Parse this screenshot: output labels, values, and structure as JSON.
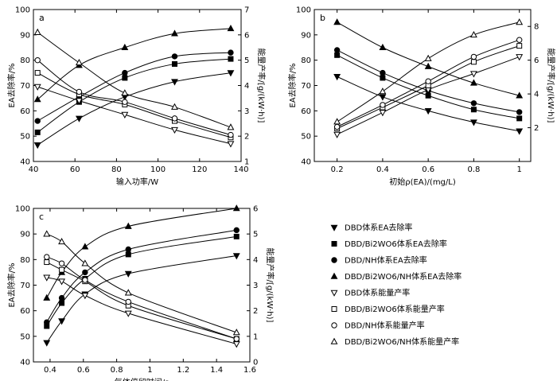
{
  "chart_data": [
    {
      "type": "line",
      "panel_label": "a",
      "xlabel": "输入功率/W",
      "ylabel": "EA去除率/%",
      "y2label": "能量产率/[g/(kW·h)]",
      "xlim": [
        40,
        140
      ],
      "ylim": [
        40,
        100
      ],
      "y2lim": [
        1,
        7
      ],
      "xticks": [
        40,
        60,
        80,
        100,
        120,
        140
      ],
      "yticks": [
        40,
        50,
        60,
        70,
        80,
        90,
        100
      ],
      "y2ticks": [
        1,
        2,
        3,
        4,
        5,
        6,
        7
      ],
      "grid": false,
      "series": [
        {
          "name": "DBD体系EA去除率",
          "marker": "triangle-down",
          "filled": true,
          "axis": "left",
          "x": [
            42,
            62,
            84,
            108,
            135
          ],
          "y": [
            46.5,
            57,
            65.5,
            71.5,
            75
          ]
        },
        {
          "name": "DBD/Bi2WO6体系EA去除率",
          "marker": "square",
          "filled": true,
          "axis": "left",
          "x": [
            42,
            62,
            84,
            108,
            135
          ],
          "y": [
            51.5,
            63.5,
            73,
            78.5,
            80.5
          ]
        },
        {
          "name": "DBD/NH体系EA去除率",
          "marker": "circle",
          "filled": true,
          "axis": "left",
          "x": [
            42,
            62,
            84,
            108,
            135
          ],
          "y": [
            56,
            65.5,
            75,
            81.5,
            83
          ]
        },
        {
          "name": "DBD/Bi2WO6/NH体系EA去除率",
          "marker": "triangle-up",
          "filled": true,
          "axis": "left",
          "x": [
            42,
            62,
            84,
            108,
            135
          ],
          "y": [
            64.5,
            78,
            85,
            90.5,
            92.5
          ]
        },
        {
          "name": "DBD体系能量产率",
          "marker": "triangle-down",
          "filled": false,
          "axis": "right",
          "x": [
            42,
            62,
            84,
            108,
            135
          ],
          "y": [
            3.95,
            3.4,
            2.85,
            2.25,
            1.7
          ]
        },
        {
          "name": "DBD/Bi2WO6体系能量产率",
          "marker": "square",
          "filled": false,
          "axis": "right",
          "x": [
            42,
            62,
            84,
            108,
            135
          ],
          "y": [
            4.5,
            3.65,
            3.25,
            2.6,
            1.95
          ]
        },
        {
          "name": "DBD/NH体系能量产率",
          "marker": "circle",
          "filled": false,
          "axis": "right",
          "x": [
            42,
            62,
            84,
            108,
            135
          ],
          "y": [
            5,
            3.75,
            3.35,
            2.7,
            2.05
          ]
        },
        {
          "name": "DBD/Bi2WO6/NH体系能量产率",
          "marker": "triangle-up",
          "filled": false,
          "axis": "right",
          "x": [
            42,
            62,
            84,
            108,
            135
          ],
          "y": [
            6.1,
            4.9,
            3.7,
            3.15,
            2.35
          ]
        }
      ]
    },
    {
      "type": "line",
      "panel_label": "b",
      "xlabel": "初始ρ(EA)/(mg/L)",
      "ylabel": "EA去除率/%",
      "y2label": "能量产率/[g/(kW·h)]",
      "xlim": [
        0.1,
        1.05
      ],
      "ylim": [
        40,
        100
      ],
      "y2lim": [
        0,
        9
      ],
      "xticks": [
        0.2,
        0.4,
        0.6,
        0.8,
        1.0
      ],
      "yticks": [
        40,
        50,
        60,
        70,
        80,
        90,
        100
      ],
      "y2ticks": [
        2,
        4,
        6,
        8
      ],
      "grid": false,
      "series": [
        {
          "name": "DBD体系EA去除率",
          "marker": "triangle-down",
          "filled": true,
          "axis": "left",
          "x": [
            0.2,
            0.4,
            0.6,
            0.8,
            1.0
          ],
          "y": [
            73.5,
            65.5,
            60,
            55.5,
            52
          ]
        },
        {
          "name": "DBD/Bi2WO6体系EA去除率",
          "marker": "square",
          "filled": true,
          "axis": "left",
          "x": [
            0.2,
            0.4,
            0.6,
            0.8,
            1.0
          ],
          "y": [
            82,
            73,
            66,
            60.5,
            57
          ]
        },
        {
          "name": "DBD/NH体系EA去除率",
          "marker": "circle",
          "filled": true,
          "axis": "left",
          "x": [
            0.2,
            0.4,
            0.6,
            0.8,
            1.0
          ],
          "y": [
            84,
            75,
            68,
            63,
            59.5
          ]
        },
        {
          "name": "DBD/Bi2WO6/NH体系EA去除率",
          "marker": "triangle-up",
          "filled": true,
          "axis": "left",
          "x": [
            0.2,
            0.4,
            0.6,
            0.8,
            1.0
          ],
          "y": [
            95,
            85,
            77.5,
            71,
            66
          ]
        },
        {
          "name": "DBD体系能量产率",
          "marker": "triangle-down",
          "filled": false,
          "axis": "right",
          "x": [
            0.2,
            0.4,
            0.6,
            0.8,
            1.0
          ],
          "y": [
            1.6,
            2.9,
            4.25,
            5.2,
            6.2
          ]
        },
        {
          "name": "DBD/Bi2WO6体系能量产率",
          "marker": "square",
          "filled": false,
          "axis": "right",
          "x": [
            0.2,
            0.4,
            0.6,
            0.8,
            1.0
          ],
          "y": [
            1.95,
            3.2,
            4.5,
            5.9,
            6.85
          ]
        },
        {
          "name": "DBD/NH体系能量产率",
          "marker": "circle",
          "filled": false,
          "axis": "right",
          "x": [
            0.2,
            0.4,
            0.6,
            0.8,
            1.0
          ],
          "y": [
            2.05,
            3.35,
            4.75,
            6.2,
            7.2
          ]
        },
        {
          "name": "DBD/Bi2WO6/NH体系能量产率",
          "marker": "triangle-up",
          "filled": false,
          "axis": "right",
          "x": [
            0.2,
            0.4,
            0.6,
            0.8,
            1.0
          ],
          "y": [
            2.35,
            4.15,
            6.1,
            7.5,
            8.25
          ]
        }
      ]
    },
    {
      "type": "line",
      "panel_label": "c",
      "xlabel": "气体停留时间/s",
      "ylabel": "EA去除率/%",
      "y2label": "能量产率/[g/(kW·h)]",
      "xlim": [
        0.3,
        1.6
      ],
      "ylim": [
        40,
        100
      ],
      "y2lim": [
        0,
        6
      ],
      "xticks": [
        0.4,
        0.6,
        0.8,
        1.0,
        1.2,
        1.4,
        1.6
      ],
      "yticks": [
        40,
        50,
        60,
        70,
        80,
        90,
        100
      ],
      "y2ticks": [
        0,
        1,
        2,
        3,
        4,
        5,
        6
      ],
      "grid": false,
      "series": [
        {
          "name": "DBD体系EA去除率",
          "marker": "triangle-down",
          "filled": true,
          "axis": "left",
          "x": [
            0.38,
            0.47,
            0.61,
            0.87,
            1.52
          ],
          "y": [
            47.5,
            56,
            66.5,
            74.5,
            81.5
          ]
        },
        {
          "name": "DBD/Bi2WO6体系EA去除率",
          "marker": "square",
          "filled": true,
          "axis": "left",
          "x": [
            0.38,
            0.47,
            0.61,
            0.87,
            1.52
          ],
          "y": [
            54,
            63,
            72.5,
            82,
            89
          ]
        },
        {
          "name": "DBD/NH体系EA去除率",
          "marker": "circle",
          "filled": true,
          "axis": "left",
          "x": [
            0.38,
            0.47,
            0.61,
            0.87,
            1.52
          ],
          "y": [
            55.5,
            65,
            75,
            84,
            91.5
          ]
        },
        {
          "name": "DBD/Bi2WO6/NH体系EA去除率",
          "marker": "triangle-up",
          "filled": true,
          "axis": "left",
          "x": [
            0.38,
            0.47,
            0.61,
            0.87,
            1.52
          ],
          "y": [
            65,
            75,
            85,
            93,
            100
          ]
        },
        {
          "name": "DBD体系能量产率",
          "marker": "triangle-down",
          "filled": false,
          "axis": "right",
          "x": [
            0.38,
            0.47,
            0.61,
            0.87,
            1.52
          ],
          "y": [
            3.3,
            3.15,
            2.6,
            1.9,
            0.7
          ]
        },
        {
          "name": "DBD/Bi2WO6体系能量产率",
          "marker": "square",
          "filled": false,
          "axis": "right",
          "x": [
            0.38,
            0.47,
            0.61,
            0.87,
            1.52
          ],
          "y": [
            3.9,
            3.6,
            3.15,
            2.2,
            0.9
          ]
        },
        {
          "name": "DBD/NH体系能量产率",
          "marker": "circle",
          "filled": false,
          "axis": "right",
          "x": [
            0.38,
            0.47,
            0.61,
            0.87,
            1.52
          ],
          "y": [
            4.1,
            3.85,
            3.2,
            2.35,
            0.9
          ]
        },
        {
          "name": "DBD/Bi2WO6/NH体系能量产率",
          "marker": "triangle-up",
          "filled": false,
          "axis": "right",
          "x": [
            0.38,
            0.47,
            0.61,
            0.87,
            1.52
          ],
          "y": [
            5,
            4.7,
            3.85,
            2.7,
            1.15
          ]
        }
      ]
    }
  ],
  "legend": {
    "entries": [
      {
        "label": "DBD体系EA去除率",
        "marker": "triangle-down",
        "filled": true
      },
      {
        "label": "DBD/Bi2WO6体系EA去除率",
        "marker": "square",
        "filled": true
      },
      {
        "label": "DBD/NH体系EA去除率",
        "marker": "circle",
        "filled": true
      },
      {
        "label": "DBD/Bi2WO6/NH体系EA去除率",
        "marker": "triangle-up",
        "filled": true
      },
      {
        "label": "DBD体系能量产率",
        "marker": "triangle-down",
        "filled": false
      },
      {
        "label": "DBD/Bi2WO6体系能量产率",
        "marker": "square",
        "filled": false
      },
      {
        "label": "DBD/NH体系能量产率",
        "marker": "circle",
        "filled": false
      },
      {
        "label": "DBD/Bi2WO6/NH体系能量产率",
        "marker": "triangle-up",
        "filled": false
      }
    ]
  }
}
